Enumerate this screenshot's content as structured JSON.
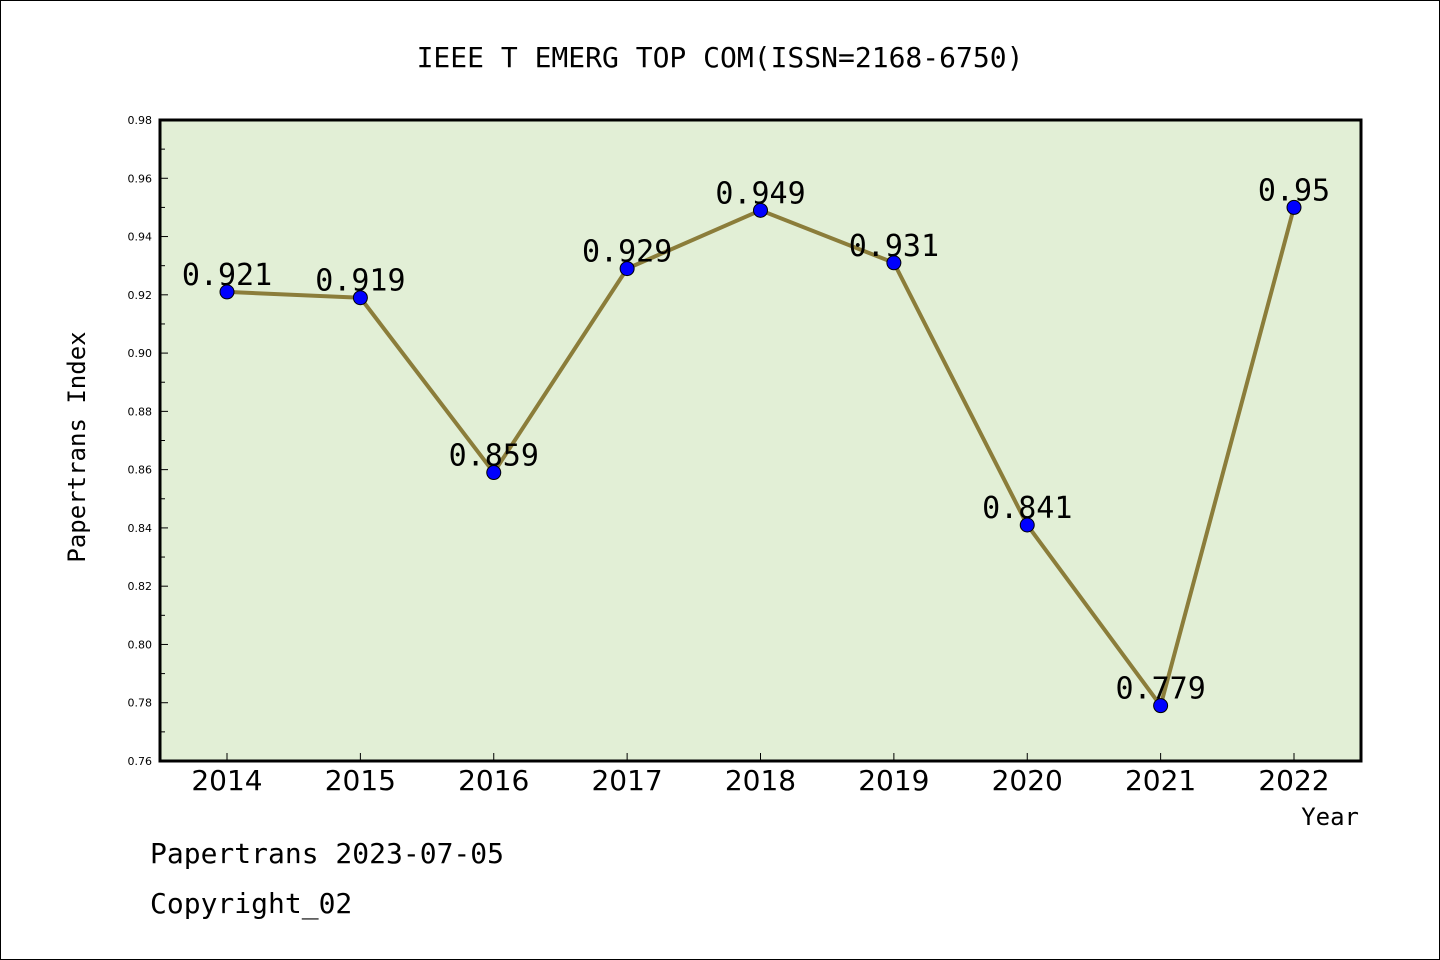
{
  "chart_data": {
    "type": "line",
    "title": "IEEE T EMERG TOP COM(ISSN=2168-6750)",
    "xlabel": "Year",
    "ylabel": "Papertrans Index",
    "categories": [
      "2014",
      "2015",
      "2016",
      "2017",
      "2018",
      "2019",
      "2020",
      "2021",
      "2022"
    ],
    "values": [
      0.921,
      0.919,
      0.859,
      0.929,
      0.949,
      0.931,
      0.841,
      0.779,
      0.95
    ],
    "data_labels": [
      "0.921",
      "0.919",
      "0.859",
      "0.929",
      "0.949",
      "0.931",
      "0.841",
      "0.779",
      "0.95"
    ],
    "ylim": [
      0.76,
      0.98
    ],
    "yticks": [
      "0.76",
      "0.78",
      "0.80",
      "0.82",
      "0.84",
      "0.86",
      "0.88",
      "0.90",
      "0.92",
      "0.94",
      "0.96",
      "0.98"
    ],
    "grid": false,
    "colors": {
      "plot_background": "#e2efd6",
      "line": "#8b7d3a",
      "marker": "#0000ff"
    }
  },
  "footer": {
    "line1": "Papertrans 2023-07-05",
    "line2": "Copyright_02"
  }
}
